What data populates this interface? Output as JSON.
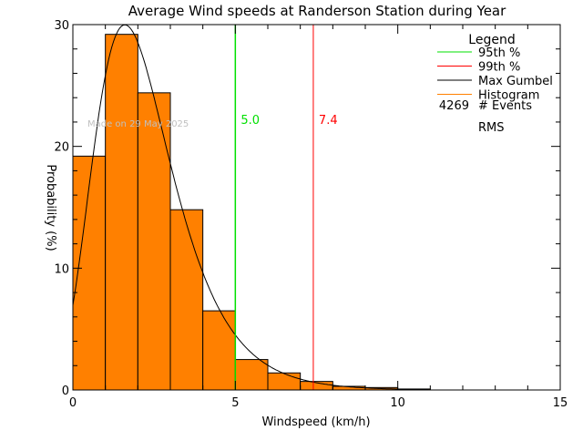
{
  "chart_data": {
    "type": "bar",
    "title": "Average Wind speeds at Randerson Station during Year",
    "xlabel": "Windspeed (km/h)",
    "ylabel": "Probability (%)",
    "xlim": [
      0,
      15
    ],
    "ylim": [
      0,
      30
    ],
    "xticks": [
      "0",
      "5",
      "10",
      "15"
    ],
    "yticks": [
      "0",
      "10",
      "20",
      "30"
    ],
    "bin_edges": [
      0,
      1,
      2,
      3,
      4,
      5,
      6,
      7,
      8,
      9,
      10,
      11
    ],
    "values": [
      19.2,
      29.2,
      24.4,
      14.8,
      6.5,
      2.5,
      1.4,
      0.7,
      0.3,
      0.2,
      0.08
    ],
    "gumbel": {
      "mu": 1.6,
      "beta": 1.2,
      "scale": 97.8
    },
    "p95": {
      "value": 5.0,
      "label": "5.0"
    },
    "p99": {
      "value": 7.4,
      "label": "7.4"
    },
    "annotation": "Made on 29 May 2025",
    "legend": {
      "title": "Legend",
      "entries": [
        {
          "label": "95th %",
          "color": "#00e000"
        },
        {
          "label": "99th %",
          "color": "#ff0000"
        },
        {
          "label": "Max Gumbel",
          "color": "#000000"
        },
        {
          "label": "Histogram",
          "color": "#ff8000"
        }
      ],
      "events_count": "4269",
      "events_label": "# Events",
      "rms_label": "RMS",
      "placement": "top-right"
    },
    "colors": {
      "bar": "#ff8000",
      "p95": "#00e000",
      "p99": "#ff0000",
      "curve": "#000000"
    }
  }
}
